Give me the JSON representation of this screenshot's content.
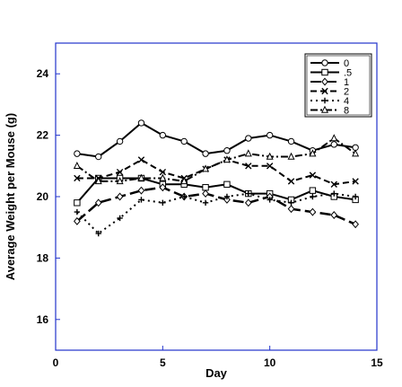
{
  "chart_data": {
    "type": "line",
    "xlabel": "Day",
    "ylabel": "Average Weight per Mouse (g)",
    "xlim": [
      0,
      15
    ],
    "ylim": [
      15,
      25
    ],
    "xticks": [
      0,
      5,
      10,
      15
    ],
    "yticks": [
      16,
      18,
      20,
      22,
      24
    ],
    "grid": false,
    "legend_position": "top-right",
    "frame_color": "#2233cc",
    "series": [
      {
        "name": "0",
        "marker": "circle",
        "dash": "solid",
        "width": 2,
        "x": [
          1,
          2,
          3,
          4,
          5,
          6,
          7,
          8,
          9,
          10,
          11,
          12,
          13,
          14
        ],
        "values": [
          21.4,
          21.3,
          21.8,
          22.4,
          22.0,
          21.8,
          21.4,
          21.5,
          21.9,
          22.0,
          21.8,
          21.5,
          21.7,
          21.6
        ]
      },
      {
        "name": ".5",
        "marker": "square",
        "dash": "solid",
        "width": 2,
        "x": [
          1,
          2,
          3,
          4,
          5,
          6,
          7,
          8,
          9,
          10,
          11,
          12,
          13,
          14
        ],
        "values": [
          19.8,
          20.6,
          20.6,
          20.6,
          20.4,
          20.4,
          20.3,
          20.4,
          20.1,
          20.1,
          19.9,
          20.2,
          20.0,
          19.9
        ]
      },
      {
        "name": "1",
        "marker": "diamond",
        "dash": "long-dash",
        "width": 2.5,
        "x": [
          1,
          2,
          3,
          4,
          5,
          6,
          7,
          8,
          9,
          10,
          11,
          12,
          13,
          14
        ],
        "values": [
          19.2,
          19.8,
          20.0,
          20.2,
          20.3,
          20.0,
          20.1,
          19.9,
          19.8,
          20.0,
          19.6,
          19.5,
          19.4,
          19.1
        ]
      },
      {
        "name": "2",
        "marker": "x",
        "dash": "dash",
        "width": 2,
        "x": [
          1,
          2,
          3,
          4,
          5,
          6,
          7,
          8,
          9,
          10,
          11,
          12,
          13,
          14
        ],
        "values": [
          20.6,
          20.6,
          20.8,
          21.2,
          20.8,
          20.6,
          20.9,
          21.2,
          21.0,
          21.0,
          20.5,
          20.7,
          20.4,
          20.5
        ]
      },
      {
        "name": "4",
        "marker": "plus",
        "dash": "dot",
        "width": 2,
        "x": [
          1,
          2,
          3,
          4,
          5,
          6,
          7,
          8,
          9,
          10,
          11,
          12,
          13,
          14
        ],
        "values": [
          19.5,
          18.8,
          19.3,
          19.9,
          19.8,
          20.0,
          19.8,
          20.0,
          20.1,
          19.9,
          19.8,
          20.0,
          20.1,
          20.0
        ]
      },
      {
        "name": "8",
        "marker": "triangle",
        "dash": "dash-dot",
        "width": 2,
        "x": [
          1,
          2,
          3,
          4,
          5,
          6,
          7,
          8,
          9,
          10,
          11,
          12,
          13,
          14
        ],
        "values": [
          21.0,
          20.5,
          20.5,
          20.6,
          20.6,
          20.5,
          20.9,
          21.2,
          21.4,
          21.3,
          21.3,
          21.4,
          21.9,
          21.4
        ]
      }
    ]
  }
}
